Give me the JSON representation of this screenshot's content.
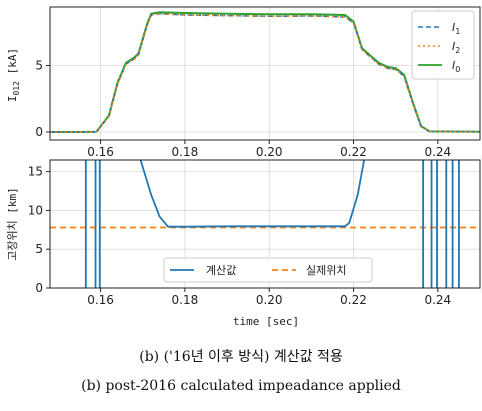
{
  "captions": {
    "korean": "(b) ('16년 이후 방식) 계산값 적용",
    "english": "(b) post-2016 calculated impeadance applied"
  },
  "chart_data": [
    {
      "type": "line",
      "ylabel": "I_012 [kA]",
      "xlim": [
        0.148,
        0.25
      ],
      "ylim": [
        -0.6,
        9.4
      ],
      "xticks": [
        "0.16",
        "0.18",
        "0.20",
        "0.22",
        "0.24"
      ],
      "yticks": [
        "0",
        "5"
      ],
      "grid": true,
      "legend_position": "top-right",
      "colors": {
        "I1": "#1f77b4",
        "I2": "#ff7f0e",
        "I0": "#2ca02c"
      },
      "series": [
        {
          "name": "I1",
          "x": [
            0.148,
            0.155,
            0.159,
            0.162,
            0.164,
            0.166,
            0.168,
            0.169,
            0.171,
            0.172,
            0.174,
            0.18,
            0.19,
            0.2,
            0.21,
            0.218,
            0.22,
            0.222,
            0.226,
            0.228,
            0.23,
            0.232,
            0.234,
            0.236,
            0.238,
            0.25
          ],
          "y": [
            0,
            0,
            0.02,
            1.2,
            3.6,
            5.1,
            5.5,
            5.8,
            8.0,
            8.8,
            8.9,
            8.8,
            8.75,
            8.7,
            8.72,
            8.65,
            8.2,
            6.2,
            5.1,
            4.8,
            4.7,
            4.2,
            2.2,
            0.4,
            0.05,
            0.02
          ]
        },
        {
          "name": "I2",
          "x": [
            0.148,
            0.155,
            0.159,
            0.162,
            0.164,
            0.166,
            0.168,
            0.169,
            0.171,
            0.172,
            0.174,
            0.18,
            0.19,
            0.2,
            0.21,
            0.218,
            0.22,
            0.222,
            0.226,
            0.228,
            0.23,
            0.232,
            0.234,
            0.236,
            0.238,
            0.25
          ],
          "y": [
            0,
            0,
            0.02,
            1.2,
            3.6,
            5.1,
            5.5,
            5.8,
            8.0,
            8.8,
            8.9,
            8.8,
            8.75,
            8.7,
            8.72,
            8.65,
            8.2,
            6.2,
            5.1,
            4.8,
            4.7,
            4.2,
            2.2,
            0.4,
            0.05,
            0.02
          ]
        },
        {
          "name": "I0",
          "x": [
            0.148,
            0.155,
            0.159,
            0.162,
            0.164,
            0.166,
            0.168,
            0.169,
            0.171,
            0.172,
            0.174,
            0.18,
            0.19,
            0.2,
            0.21,
            0.218,
            0.22,
            0.222,
            0.226,
            0.228,
            0.23,
            0.232,
            0.234,
            0.236,
            0.238,
            0.25
          ],
          "y": [
            0,
            0,
            0.02,
            1.25,
            3.7,
            5.2,
            5.6,
            5.9,
            8.1,
            8.9,
            9.0,
            8.95,
            8.9,
            8.85,
            8.85,
            8.8,
            8.3,
            6.3,
            5.2,
            4.9,
            4.8,
            4.3,
            2.3,
            0.45,
            0.05,
            0.02
          ]
        }
      ],
      "legend": [
        "I1",
        "I2",
        "I0"
      ]
    },
    {
      "type": "line",
      "ylabel": "고장위치 [km]",
      "xlabel": "time [sec]",
      "xlim": [
        0.148,
        0.25
      ],
      "ylim": [
        0,
        16.5
      ],
      "xticks": [
        "0.16",
        "0.18",
        "0.20",
        "0.22",
        "0.24"
      ],
      "yticks": [
        "0",
        "5",
        "10",
        "15"
      ],
      "grid": true,
      "legend_position": "lower-center",
      "colors": {
        "calculated": "#1f77b4",
        "actual": "#ff7f0e"
      },
      "series": [
        {
          "name": "계산값",
          "x": [
            0.1695,
            0.172,
            0.174,
            0.176,
            0.18,
            0.19,
            0.2,
            0.21,
            0.216,
            0.218,
            0.219,
            0.221,
            0.2225
          ],
          "y": [
            16.5,
            12.0,
            9.2,
            7.9,
            7.9,
            7.95,
            7.95,
            7.95,
            7.95,
            7.95,
            8.4,
            12.0,
            16.5
          ]
        },
        {
          "name": "실제위치",
          "x": [
            0.148,
            0.25
          ],
          "y": [
            7.8,
            7.8
          ]
        }
      ],
      "spikes_x": [
        0.1565,
        0.1588,
        0.1598,
        0.2365,
        0.2385,
        0.2398,
        0.242,
        0.2435,
        0.245
      ],
      "legend": [
        "계산값",
        "실제위치"
      ]
    }
  ]
}
